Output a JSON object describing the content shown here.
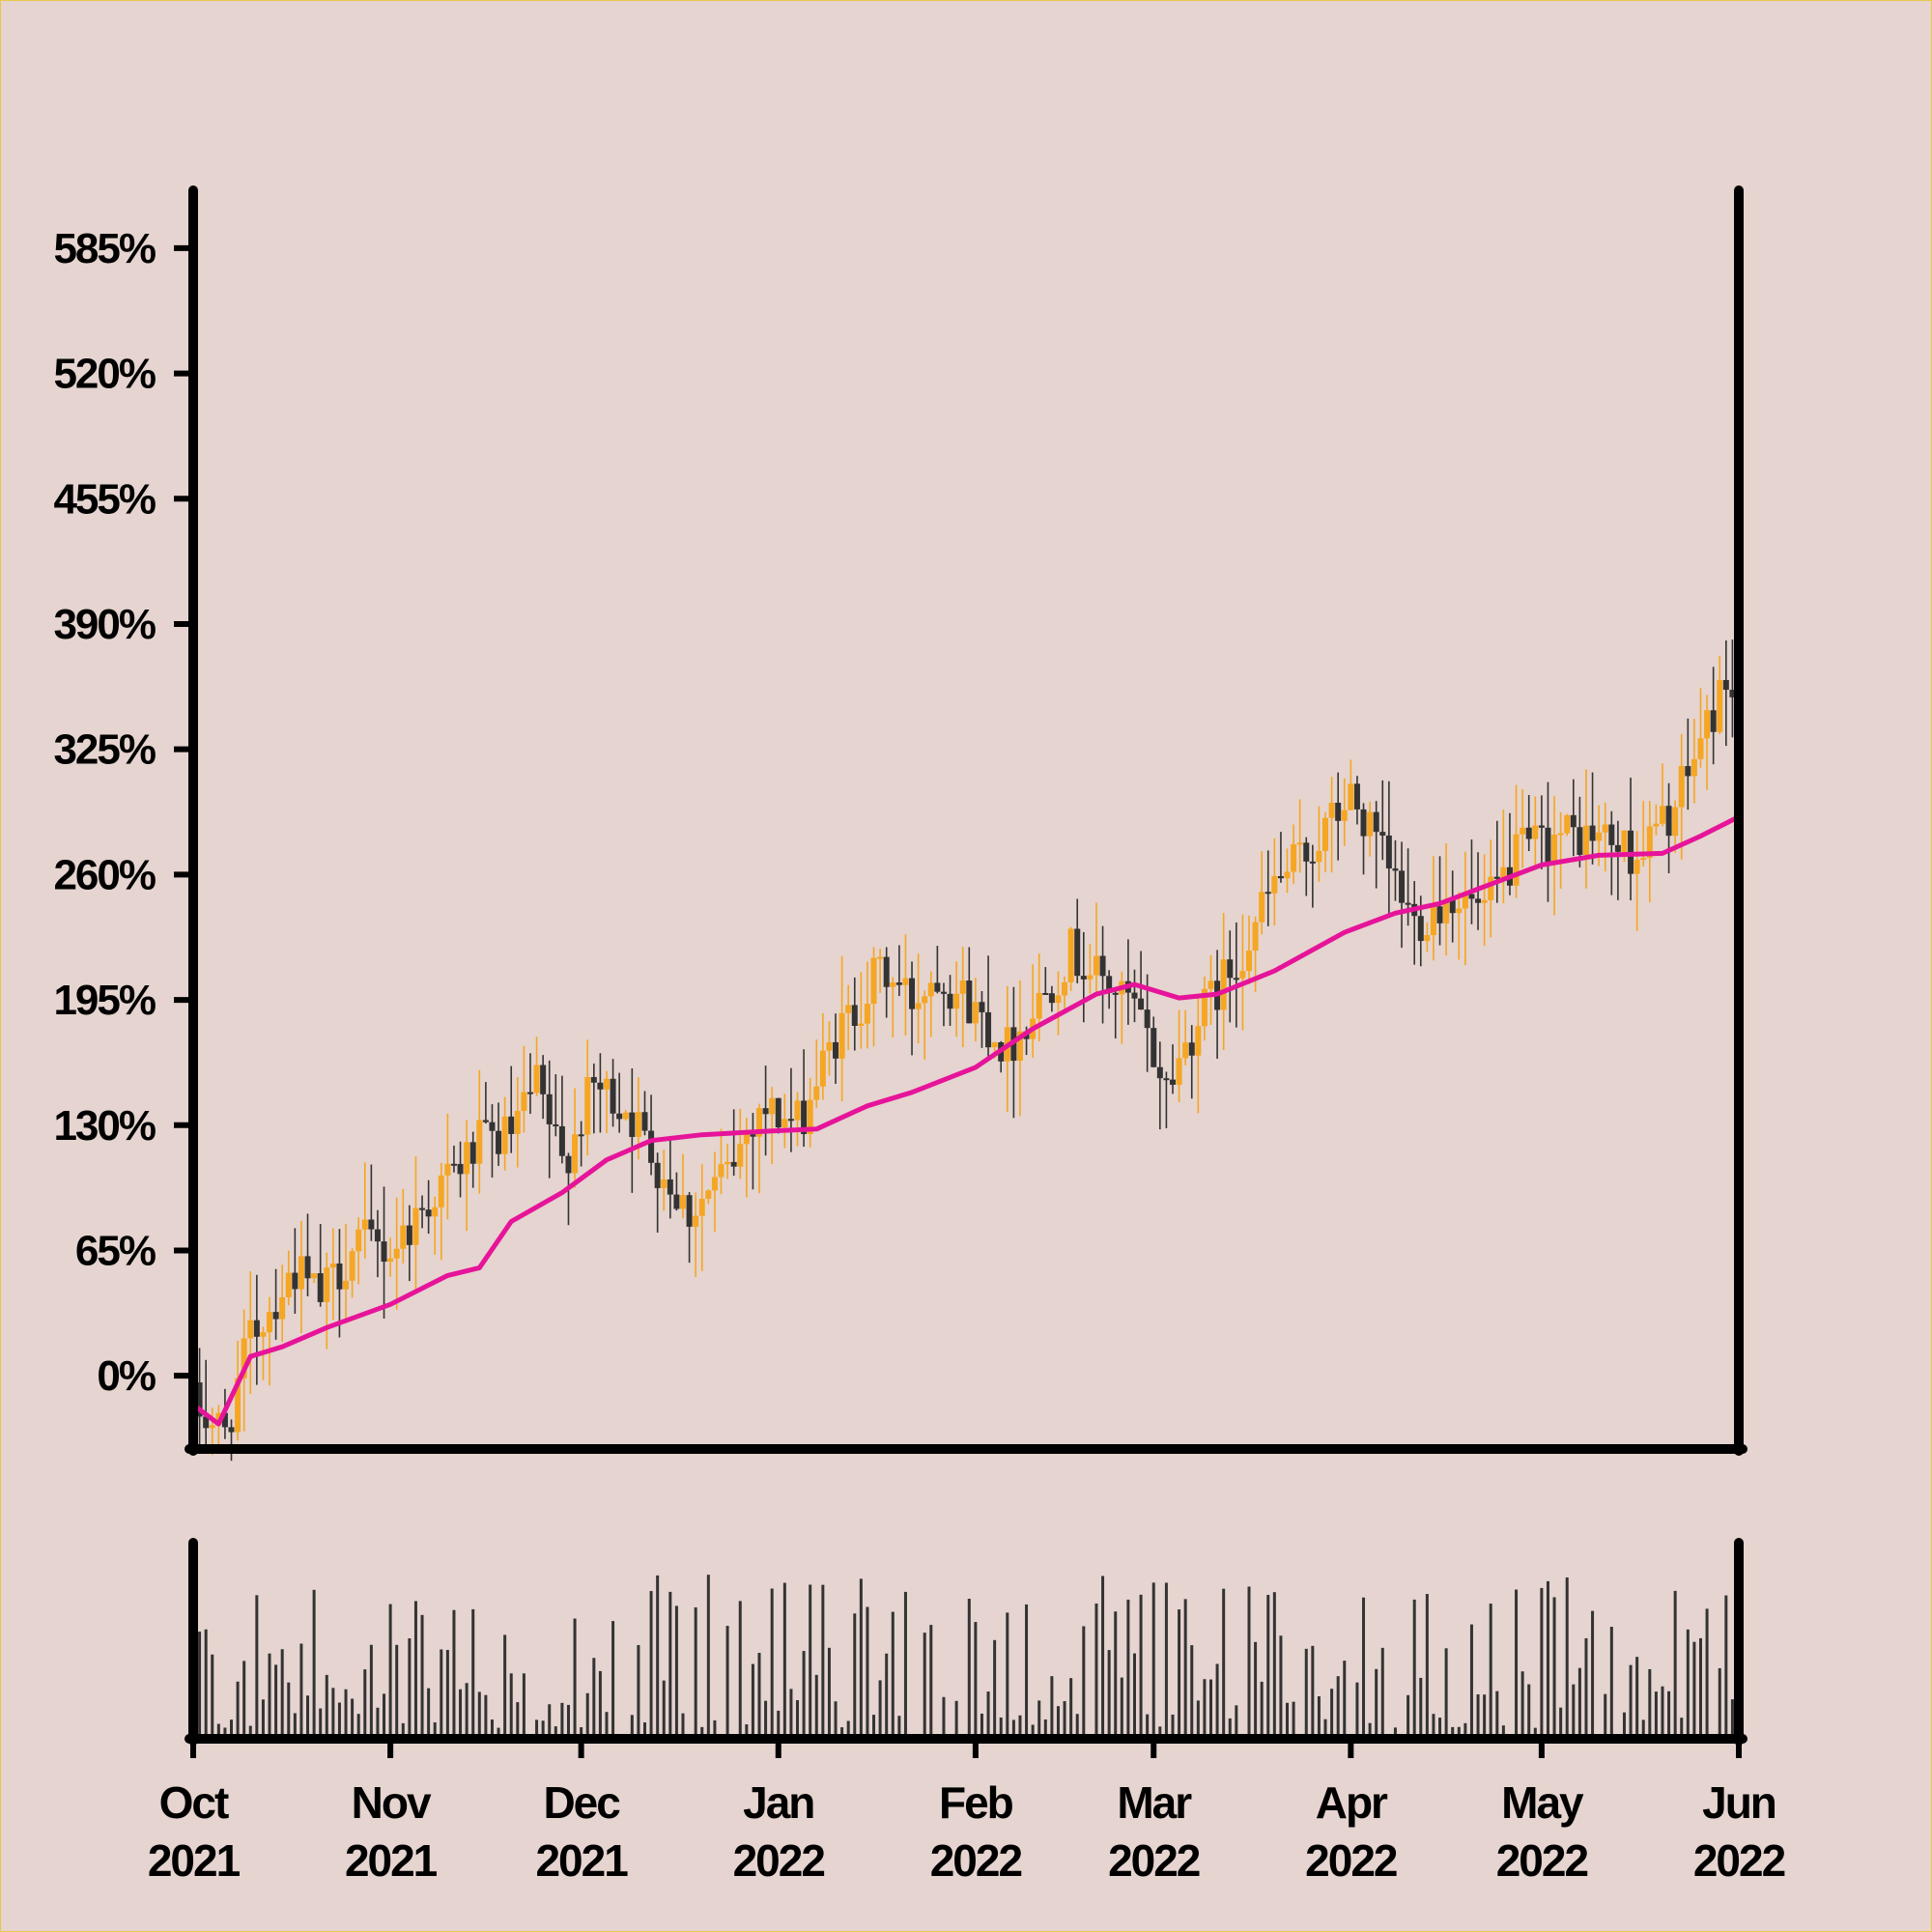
{
  "colors": {
    "background": "#e5d4cf",
    "frame_border": "#e8c84a",
    "axis": "#000000",
    "candle_up": "#f5a623",
    "candle_down": "#333333",
    "moving_average": "#e6149a",
    "volume": "#333333"
  },
  "chart_data": [
    {
      "type": "candlestick",
      "title": "",
      "xlabel": "",
      "ylabel": "",
      "y_unit": "%",
      "y_ticks": [
        0,
        65,
        130,
        195,
        260,
        325,
        390,
        455,
        520,
        585
      ],
      "y_tick_labels": [
        "0%",
        "65%",
        "130%",
        "195%",
        "260%",
        "325%",
        "390%",
        "455%",
        "520%",
        "585%"
      ],
      "ylim": [
        -38,
        615
      ],
      "x_range": [
        "2021-10-01",
        "2022-06-01"
      ],
      "grid": false,
      "series": [
        {
          "kind": "ohlc",
          "close_anchors": [
            [
              "2021-10-01",
              -15
            ],
            [
              "2021-10-06",
              -30
            ],
            [
              "2021-10-10",
              20
            ],
            [
              "2021-10-17",
              55
            ],
            [
              "2021-10-21",
              40
            ],
            [
              "2021-10-27",
              70
            ],
            [
              "2021-11-01",
              65
            ],
            [
              "2021-11-08",
              95
            ],
            [
              "2021-11-15",
              120
            ],
            [
              "2021-11-20",
              125
            ],
            [
              "2021-11-24",
              150
            ],
            [
              "2021-11-28",
              110
            ],
            [
              "2021-12-03",
              150
            ],
            [
              "2021-12-08",
              140
            ],
            [
              "2021-12-13",
              110
            ],
            [
              "2021-12-18",
              85
            ],
            [
              "2021-12-24",
              105
            ],
            [
              "2021-12-29",
              140
            ],
            [
              "2022-01-04",
              130
            ],
            [
              "2022-01-10",
              175
            ],
            [
              "2022-01-17",
              210
            ],
            [
              "2022-01-22",
              195
            ],
            [
              "2022-01-26",
              210
            ],
            [
              "2022-02-01",
              190
            ],
            [
              "2022-02-06",
              170
            ],
            [
              "2022-02-11",
              195
            ],
            [
              "2022-02-16",
              220
            ],
            [
              "2022-02-21",
              205
            ],
            [
              "2022-02-26",
              190
            ],
            [
              "2022-03-03",
              150
            ],
            [
              "2022-03-08",
              185
            ],
            [
              "2022-03-14",
              215
            ],
            [
              "2022-03-20",
              255
            ],
            [
              "2022-03-25",
              270
            ],
            [
              "2022-04-01",
              300
            ],
            [
              "2022-04-05",
              275
            ],
            [
              "2022-04-11",
              235
            ],
            [
              "2022-04-17",
              250
            ],
            [
              "2022-04-22",
              240
            ],
            [
              "2022-04-27",
              270
            ],
            [
              "2022-05-03",
              280
            ],
            [
              "2022-05-10",
              280
            ],
            [
              "2022-05-16",
              270
            ],
            [
              "2022-05-22",
              295
            ],
            [
              "2022-05-26",
              330
            ],
            [
              "2022-05-30",
              360
            ],
            [
              "2022-06-01",
              355
            ]
          ]
        },
        {
          "kind": "line",
          "values": [
            [
              "2021-10-01",
              -15
            ],
            [
              "2021-10-05",
              -25
            ],
            [
              "2021-10-10",
              10
            ],
            [
              "2021-10-15",
              15
            ],
            [
              "2021-10-22",
              25
            ],
            [
              "2021-11-01",
              37
            ],
            [
              "2021-11-10",
              52
            ],
            [
              "2021-11-15",
              56
            ],
            [
              "2021-11-20",
              80
            ],
            [
              "2021-11-28",
              95
            ],
            [
              "2021-12-05",
              112
            ],
            [
              "2021-12-12",
              122
            ],
            [
              "2021-12-20",
              125
            ],
            [
              "2021-12-31",
              127
            ],
            [
              "2022-01-07",
              128
            ],
            [
              "2022-01-15",
              140
            ],
            [
              "2022-01-22",
              147
            ],
            [
              "2022-02-01",
              160
            ],
            [
              "2022-02-10",
              180
            ],
            [
              "2022-02-20",
              198
            ],
            [
              "2022-02-26",
              203
            ],
            [
              "2022-03-05",
              196
            ],
            [
              "2022-03-11",
              198
            ],
            [
              "2022-03-20",
              210
            ],
            [
              "2022-03-31",
              230
            ],
            [
              "2022-04-08",
              240
            ],
            [
              "2022-04-15",
              245
            ],
            [
              "2022-04-23",
              255
            ],
            [
              "2022-05-01",
              265
            ],
            [
              "2022-05-10",
              270
            ],
            [
              "2022-05-20",
              271
            ],
            [
              "2022-05-26",
              280
            ],
            [
              "2022-06-01",
              290
            ]
          ]
        }
      ]
    },
    {
      "type": "bar",
      "title": "",
      "xlabel": "",
      "ylabel": "",
      "x_range": [
        "2021-10-01",
        "2022-06-01"
      ],
      "x_ticks": [
        "2021-10-01",
        "2021-11-01",
        "2021-12-01",
        "2022-01-01",
        "2022-02-01",
        "2022-03-01",
        "2022-04-01",
        "2022-05-01",
        "2022-06-01"
      ],
      "x_tick_labels": [
        [
          "Oct",
          "2021"
        ],
        [
          "Nov",
          "2021"
        ],
        [
          "Dec",
          "2021"
        ],
        [
          "Jan",
          "2022"
        ],
        [
          "Feb",
          "2022"
        ],
        [
          "Mar",
          "2022"
        ],
        [
          "Apr",
          "2022"
        ],
        [
          "May",
          "2022"
        ],
        [
          "Jun",
          "2022"
        ]
      ],
      "series": [
        {
          "kind": "volume",
          "relative_range": [
            0.05,
            1.0
          ]
        }
      ]
    }
  ]
}
